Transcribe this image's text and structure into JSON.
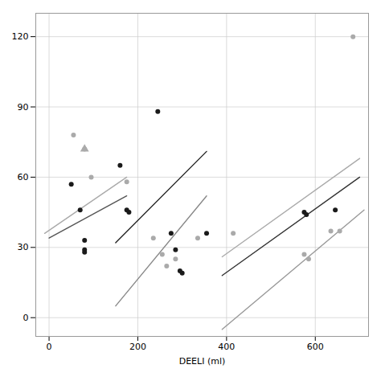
{
  "chart_data": {
    "type": "scatter",
    "xlabel": "DEELI (ml)",
    "xlim": [
      -30,
      720
    ],
    "ylim": [
      -8,
      130
    ],
    "xticks": [
      0,
      200,
      400,
      600
    ],
    "yticks": [
      0,
      30,
      60,
      90,
      120
    ],
    "grid": true,
    "series": [
      {
        "type": "line",
        "color": "#aaaaaa",
        "x": [
          -10,
          175
        ],
        "values": [
          36,
          60
        ]
      },
      {
        "type": "line",
        "color": "#555555",
        "x": [
          0,
          175
        ],
        "values": [
          34,
          52
        ]
      },
      {
        "type": "line",
        "color": "#222222",
        "x": [
          150,
          355
        ],
        "values": [
          32,
          71
        ]
      },
      {
        "type": "line",
        "color": "#888888",
        "x": [
          150,
          355
        ],
        "values": [
          5,
          52
        ]
      },
      {
        "type": "line",
        "color": "#aaaaaa",
        "x": [
          390,
          700
        ],
        "values": [
          26,
          68
        ]
      },
      {
        "type": "line",
        "color": "#333333",
        "x": [
          390,
          700
        ],
        "values": [
          18,
          60
        ]
      },
      {
        "type": "line",
        "color": "#999999",
        "x": [
          390,
          710
        ],
        "values": [
          -5,
          46
        ]
      },
      {
        "type": "scatter",
        "color": "#1a1a1a",
        "marker": "circle",
        "x": [
          50,
          70,
          80,
          80,
          80,
          160,
          175,
          180,
          245,
          275,
          285,
          295,
          300,
          355,
          575,
          580,
          645
        ],
        "values": [
          57,
          46,
          33,
          29,
          28,
          65,
          46,
          45,
          88,
          36,
          29,
          20,
          19,
          36,
          45,
          44,
          46
        ]
      },
      {
        "type": "scatter",
        "color": "#aaaaaa",
        "marker": "circle",
        "x": [
          55,
          80,
          95,
          175,
          235,
          255,
          265,
          285,
          335,
          415,
          575,
          585,
          635,
          655,
          685
        ],
        "values": [
          78,
          72,
          60,
          58,
          34,
          27,
          22,
          25,
          34,
          36,
          27,
          25,
          37,
          37,
          120
        ]
      },
      {
        "type": "scatter",
        "color": "#aaaaaa",
        "marker": "triangle",
        "x": [
          80
        ],
        "values": [
          72
        ]
      }
    ]
  }
}
